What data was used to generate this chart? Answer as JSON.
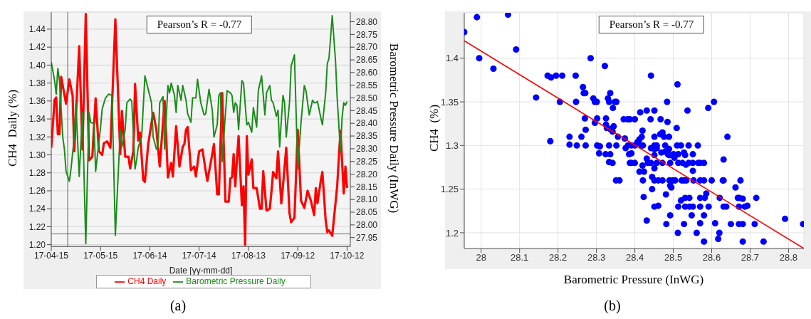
{
  "chart_data": [
    {
      "type": "line",
      "xlabel": "Date [yy-mm-dd]",
      "ylabel": "CH4  Daily (%)",
      "y2label": "Barometric Pressure Daily (InWG)",
      "annotations": [
        "Pearson’s R = -0.77",
        "(a)"
      ],
      "xlim": [
        "--04-15",
        "--10-14"
      ],
      "xticks": [
        {
          "value": "--04-15",
          "label": "17-04-15"
        },
        {
          "value": "--05-15",
          "label": "17-05-15"
        },
        {
          "value": "--06-14",
          "label": "17-06-14"
        },
        {
          "value": "--07-14",
          "label": "17-07-14"
        },
        {
          "value": "--08-13",
          "label": "17-08-13"
        },
        {
          "value": "--09-12",
          "label": "17-09-12"
        },
        {
          "value": "--10-12",
          "label": "17-10-12"
        }
      ],
      "ylim": [
        1.198,
        1.459
      ],
      "yticks": [
        {
          "value": 1.2,
          "label": "1.20"
        },
        1.22,
        1.24,
        1.26,
        1.28,
        {
          "value": 1.3,
          "label": "1.30"
        },
        1.32,
        1.34,
        1.36,
        1.38,
        {
          "value": 1.4,
          "label": "1.40"
        },
        1.42,
        1.44
      ],
      "y2lim": [
        27.915,
        28.838
      ],
      "y2ticks": [
        27.95,
        {
          "value": 28,
          "label": "28.00"
        },
        28.05,
        {
          "value": 28.1,
          "label": "28.10"
        },
        28.15,
        {
          "value": 28.2,
          "label": "28.20"
        },
        28.25,
        {
          "value": 28.3,
          "label": "28.30"
        },
        28.35,
        {
          "value": 28.4,
          "label": "28.40"
        },
        28.45,
        {
          "value": 28.5,
          "label": "28.50"
        },
        28.55,
        {
          "value": 28.6,
          "label": "28.60"
        },
        28.65,
        {
          "value": 28.7,
          "label": "28.70"
        },
        28.75,
        {
          "value": 28.8,
          "label": "28.80"
        }
      ],
      "grid": "y",
      "legend": "bottom",
      "ref_lines": [
        {
          "axis": "x",
          "value": "--04-25",
          "color": "#606060"
        },
        {
          "axis": "y",
          "value": 1.212,
          "color": "#606060"
        }
      ],
      "series": [
        {
          "name": "CH4 Daily",
          "color": "#ff0000",
          "x": [
            "--04-15",
            "--04-17",
            "--04-18",
            "--04-19",
            "--04-20",
            "--04-21",
            "--04-24",
            "--04-26",
            "--04-28",
            "--04-29",
            "--05-02",
            "--05-04",
            "--05-06",
            "--05-08",
            "--05-10",
            "--05-11",
            "--05-12",
            "--05-14",
            "--05-16",
            "--05-17",
            "--05-19",
            "--05-21",
            "--05-24",
            "--05-27",
            "--05-28",
            "--05-30",
            "--06-01",
            "--06-02",
            "--06-04",
            "--06-05",
            "--06-07",
            "--06-08",
            "--06-10",
            "--06-11",
            "--06-13",
            "--06-16",
            "--06-18",
            "--06-20",
            "--06-23",
            "--06-25",
            "--06-27",
            "--06-28",
            "--06-30",
            "--07-02",
            "--07-04",
            "--07-05",
            "--07-06",
            "--07-07",
            "--07-09",
            "--07-11",
            "--07-12",
            "--07-14",
            "--07-16",
            "--07-18",
            "--07-19",
            "--07-22",
            "--07-23",
            "--07-25",
            "--07-26",
            "--07-28",
            "--07-30",
            "--08-01",
            "--08-02",
            "--08-03",
            "--08-04",
            "--08-05",
            "--08-06",
            "--08-07",
            "--08-09",
            "--08-10",
            "--08-11",
            "--08-12",
            "--08-13",
            "--08-15",
            "--08-16",
            "--08-18",
            "--08-20",
            "--08-21",
            "--08-22",
            "--08-24",
            "--08-26",
            "--08-27",
            "--08-28",
            "--08-30",
            "--08-31",
            "--09-02",
            "--09-03",
            "--09-05",
            "--09-07",
            "--09-08",
            "--09-10",
            "--09-12",
            "--09-14",
            "--09-16",
            "--09-18",
            "--09-20",
            "--09-22",
            "--09-23",
            "--09-24",
            "--09-26",
            "--09-27",
            "--09-29",
            "--09-30",
            "--10-01",
            "--10-03",
            "--10-06",
            "--10-08",
            "--10-10",
            "--10-11",
            "--10-12"
          ],
          "values": [
            1.308,
            1.361,
            1.364,
            1.323,
            1.323,
            1.387,
            1.357,
            1.384,
            1.366,
            1.304,
            1.421,
            1.306,
            1.457,
            1.294,
            1.298,
            1.331,
            1.363,
            1.304,
            1.3,
            1.313,
            1.315,
            1.308,
            1.451,
            1.301,
            1.349,
            1.298,
            1.298,
            1.285,
            1.304,
            1.379,
            1.316,
            1.325,
            1.272,
            1.27,
            1.312,
            1.347,
            1.328,
            1.287,
            1.36,
            1.275,
            1.291,
            1.276,
            1.332,
            1.287,
            1.309,
            1.312,
            1.328,
            1.331,
            1.283,
            1.287,
            1.276,
            1.304,
            1.306,
            1.282,
            1.271,
            1.301,
            1.312,
            1.256,
            1.256,
            1.369,
            1.248,
            1.248,
            1.274,
            1.275,
            1.301,
            1.265,
            1.295,
            1.321,
            1.244,
            1.265,
            1.2,
            1.321,
            1.278,
            1.295,
            1.263,
            1.263,
            1.24,
            1.24,
            1.282,
            1.238,
            1.24,
            1.259,
            1.281,
            1.274,
            1.304,
            1.246,
            1.265,
            1.308,
            1.235,
            1.225,
            1.23,
            1.328,
            1.249,
            1.241,
            1.26,
            1.249,
            1.233,
            1.263,
            1.246,
            1.271,
            1.281,
            1.227,
            1.214,
            1.216,
            1.21,
            1.265,
            1.327,
            1.257,
            1.287,
            1.263
          ]
        },
        {
          "name": "Barometric Pressure Daily",
          "color": "#1a8c1a",
          "axis": "y2",
          "x": [
            "--04-15",
            "--04-17",
            "--04-18",
            "--04-19",
            "--04-20",
            "--04-22",
            "--04-23",
            "--04-24",
            "--04-26",
            "--04-27",
            "--04-29",
            "--04-30",
            "--05-02",
            "--05-04",
            "--05-06",
            "--05-08",
            "--05-09",
            "--05-11",
            "--05-12",
            "--05-15",
            "--05-16",
            "--05-18",
            "--05-20",
            "--05-22",
            "--05-24",
            "--05-27",
            "--05-28",
            "--05-30",
            "--05-31",
            "--06-02",
            "--06-03",
            "--06-05",
            "--06-06",
            "--06-07",
            "--06-09",
            "--06-11",
            "--06-13",
            "--06-15",
            "--06-16",
            "--06-18",
            "--06-19",
            "--06-20",
            "--06-22",
            "--06-23",
            "--06-25",
            "--06-26",
            "--06-27",
            "--06-29",
            "--06-30",
            "--07-01",
            "--07-03",
            "--07-04",
            "--07-06",
            "--07-07",
            "--07-09",
            "--07-10",
            "--07-12",
            "--07-13",
            "--07-15",
            "--07-17",
            "--07-18",
            "--07-20",
            "--07-22",
            "--07-23",
            "--07-25",
            "--07-26",
            "--07-27",
            "--07-28",
            "--07-29",
            "--07-31",
            "--08-02",
            "--08-03",
            "--08-04",
            "--08-05",
            "--08-06",
            "--08-07",
            "--08-09",
            "--08-10",
            "--08-12",
            "--08-13",
            "--08-15",
            "--08-16",
            "--08-18",
            "--08-19",
            "--08-21",
            "--08-23",
            "--08-24",
            "--08-26",
            "--08-27",
            "--08-28",
            "--08-30",
            "--08-31",
            "--09-01",
            "--09-03",
            "--09-04",
            "--09-05",
            "--09-07",
            "--09-08",
            "--09-10",
            "--09-12",
            "--09-14",
            "--09-16",
            "--09-17",
            "--09-19",
            "--09-21",
            "--09-22",
            "--09-23",
            "--09-24",
            "--09-26",
            "--09-27",
            "--09-29",
            "--09-30",
            "--10-01",
            "--10-03",
            "--10-05",
            "--10-06",
            "--10-08",
            "--10-09",
            "--10-10",
            "--10-11",
            "--10-12"
          ],
          "values": [
            28.641,
            28.569,
            28.515,
            28.616,
            28.568,
            28.346,
            28.298,
            28.211,
            28.172,
            28.22,
            28.346,
            28.481,
            28.191,
            28.443,
            27.926,
            28.443,
            28.404,
            28.399,
            28.211,
            28.385,
            28.457,
            28.5,
            28.515,
            28.51,
            27.959,
            28.375,
            28.307,
            28.375,
            28.481,
            28.496,
            28.486,
            28.22,
            28.259,
            28.307,
            28.346,
            28.587,
            28.534,
            28.481,
            28.346,
            28.298,
            28.307,
            28.481,
            28.505,
            28.298,
            28.549,
            28.52,
            28.558,
            28.51,
            28.443,
            28.549,
            28.491,
            28.549,
            28.491,
            28.438,
            28.404,
            28.5,
            28.5,
            28.573,
            28.481,
            28.433,
            28.438,
            28.534,
            28.452,
            28.346,
            28.394,
            28.51,
            28.52,
            28.249,
            28.346,
            28.529,
            28.52,
            28.51,
            28.443,
            28.481,
            28.471,
            28.375,
            28.568,
            28.558,
            28.394,
            28.404,
            28.365,
            28.462,
            28.385,
            28.529,
            28.587,
            28.433,
            28.52,
            28.549,
            28.491,
            28.481,
            28.428,
            28.452,
            28.307,
            28.51,
            28.481,
            28.346,
            28.481,
            28.626,
            28.67,
            28.22,
            28.404,
            28.549,
            28.529,
            28.433,
            28.491,
            28.481,
            28.481,
            28.486,
            28.423,
            28.394,
            28.52,
            28.636,
            28.655,
            28.824,
            28.645,
            28.5,
            28.288,
            28.423,
            28.481,
            28.471,
            28.486
          ]
        }
      ]
    },
    {
      "type": "scatter",
      "xlabel": "Barometric Pressure (InWG)",
      "ylabel": "CH4  (%)",
      "annotations": [
        "Pearson’s R = -0.77",
        "(b)"
      ],
      "xlim": [
        27.956,
        28.84
      ],
      "xticks": [
        28,
        28.1,
        28.2,
        28.3,
        28.4,
        28.5,
        28.6,
        28.7,
        28.8
      ],
      "ylim": [
        1.182,
        1.452
      ],
      "yticks": [
        1.2,
        1.25,
        1.3,
        1.35,
        1.4
      ],
      "grid": true,
      "series": [
        {
          "type": "scatter",
          "marker": "circle",
          "color": "#0000ff",
          "x": [
            27.956,
            27.989,
            27.995,
            28.032,
            28.07,
            28.091,
            28.143,
            28.173,
            28.182,
            28.195,
            28.211,
            28.18,
            28.205,
            28.23,
            28.23,
            28.246,
            28.247,
            28.249,
            28.261,
            28.265,
            28.267,
            28.271,
            28.27,
            28.272,
            28.272,
            28.285,
            28.292,
            28.296,
            28.301,
            28.296,
            28.302,
            28.302,
            28.309,
            28.307,
            28.322,
            28.324,
            28.325,
            28.325,
            28.327,
            28.33,
            28.333,
            28.333,
            28.333,
            28.336,
            28.336,
            28.336,
            28.342,
            28.342,
            28.343,
            28.345,
            28.348,
            28.352,
            28.351,
            28.352,
            28.356,
            28.371,
            28.381,
            28.387,
            28.4,
            28.374,
            28.376,
            28.382,
            28.391,
            28.4,
            28.385,
            28.391,
            28.387,
            28.391,
            28.4,
            28.36,
            28.407,
            28.412,
            28.414,
            28.417,
            28.418,
            28.42,
            28.421,
            28.412,
            28.42,
            28.424,
            28.421,
            28.423,
            28.431,
            28.431,
            28.434,
            28.431,
            28.441,
            28.442,
            28.442,
            28.442,
            28.445,
            28.445,
            28.451,
            28.451,
            28.451,
            28.451,
            28.451,
            28.451,
            28.451,
            28.451,
            28.457,
            28.457,
            28.457,
            28.461,
            28.461,
            28.467,
            28.466,
            28.469,
            28.472,
            28.472,
            28.472,
            28.476,
            28.479,
            28.479,
            28.481,
            28.482,
            28.484,
            28.485,
            28.486,
            28.489,
            28.492,
            28.489,
            28.489,
            28.492,
            28.49,
            28.499,
            28.505,
            28.492,
            28.492,
            28.495,
            28.501,
            28.503,
            28.509,
            28.51,
            28.511,
            28.513,
            28.513,
            28.513,
            28.512,
            28.52,
            28.52,
            28.522,
            28.528,
            28.524,
            28.528,
            28.531,
            28.528,
            28.531,
            28.531,
            28.533,
            28.534,
            28.537,
            28.54,
            28.54,
            28.542,
            28.542,
            28.548,
            28.551,
            28.551,
            28.551,
            28.551,
            28.553,
            28.561,
            28.564,
            28.565,
            28.57,
            28.58,
            28.57,
            28.58,
            28.57,
            28.57,
            28.57,
            28.58,
            28.58,
            28.582,
            28.586,
            28.591,
            28.592,
            28.6,
            28.606,
            28.609,
            28.617,
            28.62,
            28.621,
            28.629,
            28.631,
            28.631,
            28.631,
            28.638,
            28.641,
            28.65,
            28.662,
            28.668,
            28.672,
            28.671,
            28.671,
            28.675,
            28.681,
            28.681,
            28.681,
            28.686,
            28.693,
            28.712,
            28.716,
            28.735,
            28.791,
            28.838
          ],
          "values": [
            1.43,
            1.447,
            1.4,
            1.388,
            1.45,
            1.41,
            1.355,
            1.38,
            1.378,
            1.38,
            1.38,
            1.305,
            1.35,
            1.31,
            1.301,
            1.38,
            1.35,
            1.3,
            1.31,
            1.367,
            1.36,
            1.36,
            1.331,
            1.318,
            1.3,
            1.4,
            1.354,
            1.35,
            1.35,
            1.326,
            1.331,
            1.3,
            1.299,
            1.291,
            1.391,
            1.29,
            1.331,
            1.324,
            1.32,
            1.354,
            1.35,
            1.3,
            1.281,
            1.36,
            1.319,
            1.29,
            1.28,
            1.316,
            1.343,
            1.322,
            1.35,
            1.35,
            1.26,
            1.3,
            1.31,
            1.33,
            1.33,
            1.33,
            1.33,
            1.308,
            1.297,
            1.3,
            1.3,
            1.3,
            1.29,
            1.291,
            1.28,
            1.28,
            1.28,
            1.26,
            1.304,
            1.307,
            1.338,
            1.3,
            1.31,
            1.317,
            1.3,
            1.27,
            1.277,
            1.27,
            1.26,
            1.241,
            1.34,
            1.285,
            1.28,
            1.214,
            1.33,
            1.38,
            1.297,
            1.28,
            1.264,
            1.25,
            1.34,
            1.31,
            1.3,
            1.296,
            1.289,
            1.274,
            1.26,
            1.23,
            1.3,
            1.297,
            1.28,
            1.26,
            1.231,
            1.33,
            1.313,
            1.292,
            1.28,
            1.26,
            1.315,
            1.31,
            1.3,
            1.293,
            1.244,
            1.21,
            1.35,
            1.327,
            1.29,
            1.289,
            1.289,
            1.31,
            1.296,
            1.28,
            1.26,
            1.26,
            1.26,
            1.22,
            1.254,
            1.252,
            1.29,
            1.286,
            1.32,
            1.3,
            1.37,
            1.29,
            1.28,
            1.23,
            1.2,
            1.3,
            1.237,
            1.26,
            1.26,
            1.28,
            1.292,
            1.289,
            1.21,
            1.24,
            1.23,
            1.278,
            1.26,
            1.34,
            1.3,
            1.28,
            1.24,
            1.23,
            1.22,
            1.29,
            1.271,
            1.28,
            1.23,
            1.26,
            1.2,
            1.3,
            1.28,
            1.28,
            1.28,
            1.26,
            1.26,
            1.24,
            1.23,
            1.211,
            1.22,
            1.19,
            1.24,
            1.245,
            1.343,
            1.23,
            1.26,
            1.35,
            1.211,
            1.193,
            1.2,
            1.24,
            1.26,
            1.26,
            1.284,
            1.23,
            1.23,
            1.31,
            1.21,
            1.252,
            1.24,
            1.24,
            1.23,
            1.21,
            1.26,
            1.19,
            1.239,
            1.21,
            1.23,
            1.231,
            1.21,
            1.24,
            1.19,
            1.216,
            1.21
          ]
        },
        {
          "type": "line",
          "color": "#ff0000",
          "x": [
            27.956,
            28.84
          ],
          "values": [
            1.42,
            1.182
          ]
        }
      ]
    }
  ]
}
